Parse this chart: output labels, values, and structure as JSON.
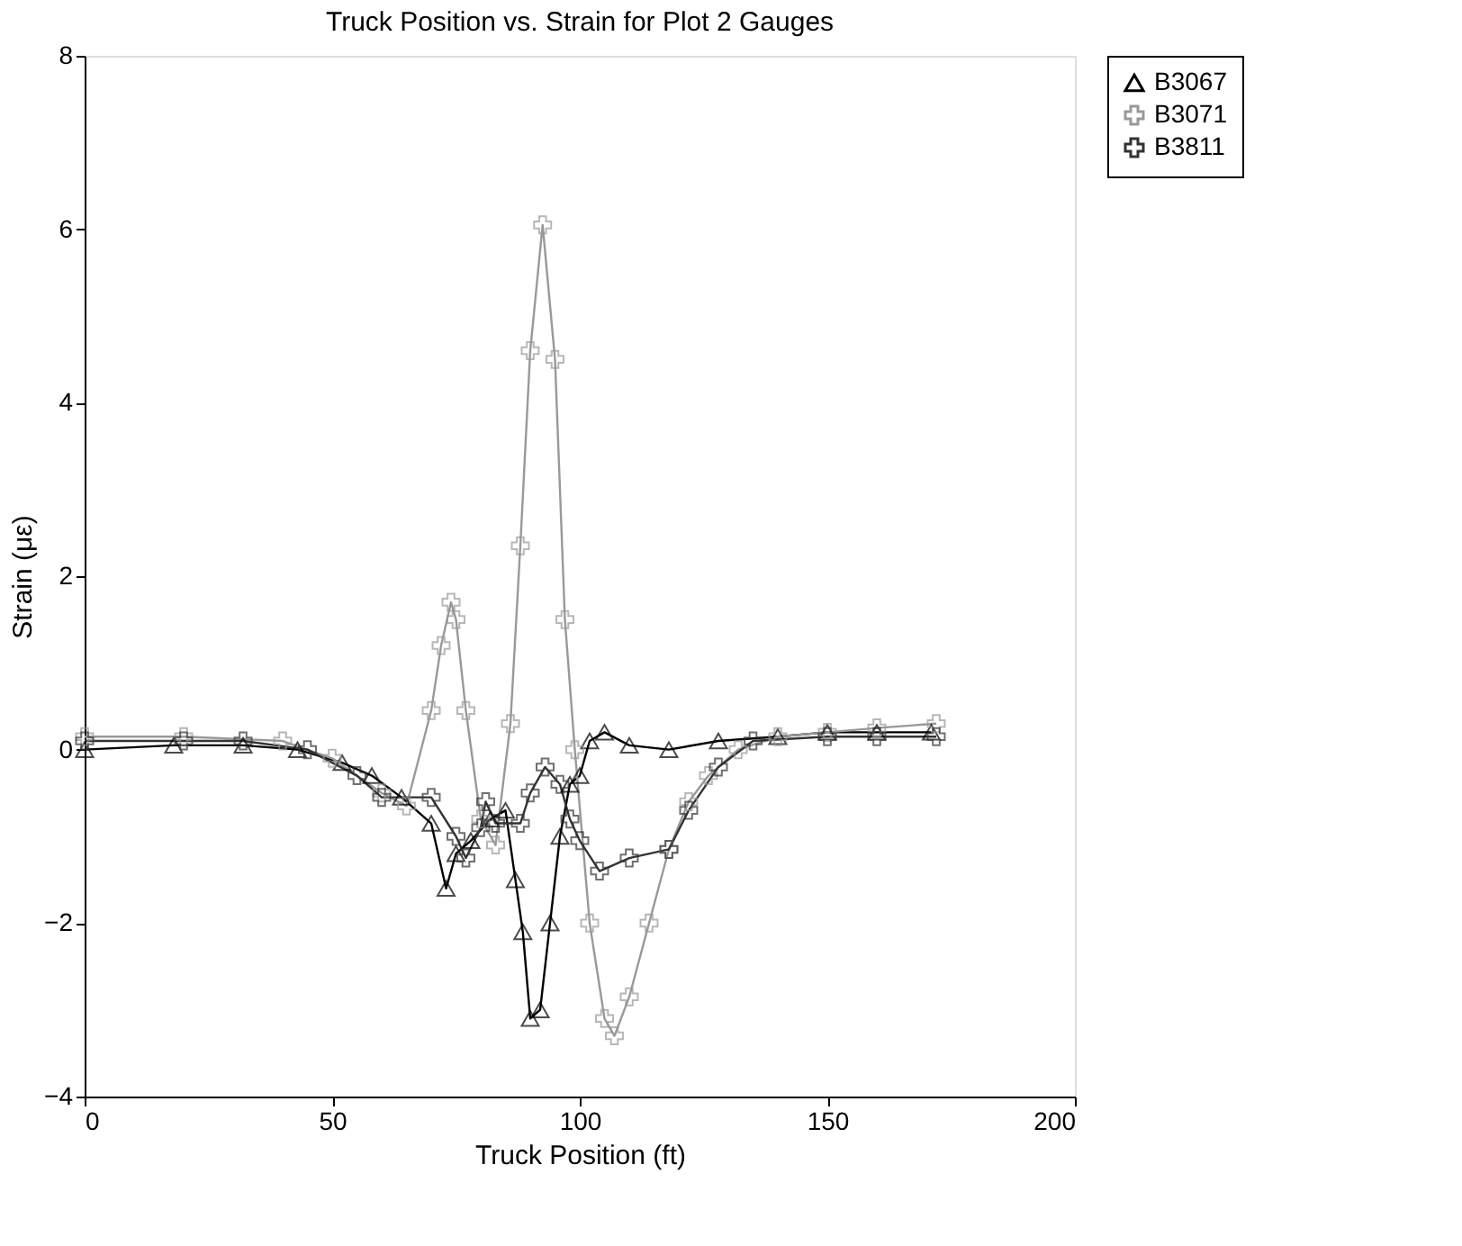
{
  "chart_data": {
    "type": "line",
    "title": "Truck Position vs. Strain for Plot 2 Gauges",
    "xlabel": "Truck Position (ft)",
    "ylabel": "Strain (με)",
    "xlim": [
      0,
      200
    ],
    "ylim": [
      -4,
      8
    ],
    "xticks": [
      0,
      50,
      100,
      150,
      200
    ],
    "yticks": [
      -4,
      -2,
      0,
      2,
      4,
      6,
      8
    ],
    "grid": false,
    "legend": "right",
    "series": [
      {
        "name": "B3067",
        "color": "#000000",
        "marker": "triangle",
        "x": [
          0,
          18,
          32,
          43,
          52,
          58,
          64,
          70,
          73,
          75,
          78,
          82,
          85,
          87,
          88.5,
          90,
          92,
          94,
          96,
          98,
          100,
          102,
          105,
          110,
          118,
          128,
          140,
          150,
          160,
          171
        ],
        "values": [
          0.0,
          0.05,
          0.05,
          0.0,
          -0.15,
          -0.3,
          -0.55,
          -0.85,
          -1.6,
          -1.2,
          -1.05,
          -0.8,
          -0.7,
          -1.5,
          -2.1,
          -3.1,
          -3.0,
          -2.0,
          -1.0,
          -0.4,
          -0.3,
          0.1,
          0.2,
          0.05,
          0.0,
          0.1,
          0.15,
          0.2,
          0.2,
          0.2
        ]
      },
      {
        "name": "B3071",
        "color": "#999999",
        "marker": "cross",
        "x": [
          0,
          20,
          40,
          50,
          60,
          65,
          70,
          72,
          74,
          75,
          77,
          80,
          83,
          86,
          88,
          90,
          92.5,
          95,
          97,
          99,
          102,
          105,
          107,
          110,
          114,
          118,
          122,
          126,
          132,
          140,
          150,
          160,
          172
        ],
        "values": [
          0.15,
          0.15,
          0.1,
          -0.1,
          -0.5,
          -0.65,
          0.45,
          1.2,
          1.7,
          1.5,
          0.45,
          -0.8,
          -1.1,
          0.3,
          2.35,
          4.6,
          6.05,
          4.5,
          1.5,
          0.0,
          -2.0,
          -3.1,
          -3.3,
          -2.85,
          -2.0,
          -1.15,
          -0.6,
          -0.3,
          0.0,
          0.15,
          0.2,
          0.25,
          0.3
        ]
      },
      {
        "name": "B3811",
        "color": "#333333",
        "marker": "cross",
        "x": [
          0,
          20,
          32,
          45,
          55,
          60,
          70,
          75,
          77,
          80,
          81,
          83,
          88,
          90,
          93,
          96,
          98,
          100,
          104,
          110,
          118,
          122,
          128,
          135,
          150,
          160,
          172
        ],
        "values": [
          0.1,
          0.1,
          0.1,
          0.0,
          -0.3,
          -0.55,
          -0.55,
          -1.0,
          -1.25,
          -0.9,
          -0.6,
          -0.85,
          -0.85,
          -0.5,
          -0.2,
          -0.4,
          -0.8,
          -1.05,
          -1.4,
          -1.25,
          -1.15,
          -0.7,
          -0.2,
          0.1,
          0.15,
          0.15,
          0.15
        ]
      }
    ]
  }
}
